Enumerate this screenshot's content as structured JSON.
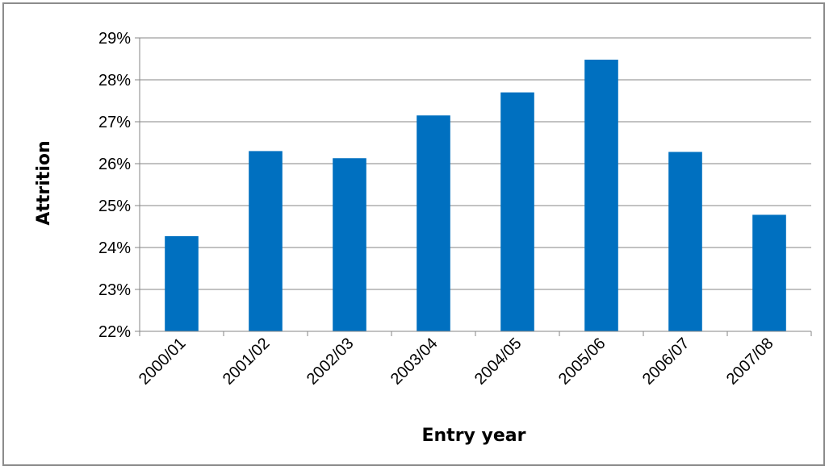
{
  "chart_data": {
    "type": "bar",
    "title": "",
    "xlabel": "Entry year",
    "ylabel": "Attrition",
    "categories": [
      "2000/01",
      "2001/02",
      "2002/03",
      "2003/04",
      "2004/05",
      "2005/06",
      "2006/07",
      "2007/08"
    ],
    "values": [
      24.27,
      26.3,
      26.13,
      27.15,
      27.7,
      28.48,
      26.28,
      24.78
    ],
    "y_unit": "%",
    "ylim": [
      22,
      29
    ],
    "yticks": [
      22,
      23,
      24,
      25,
      26,
      27,
      28,
      29
    ],
    "ytick_labels": [
      "22%",
      "23%",
      "24%",
      "25%",
      "26%",
      "27%",
      "28%",
      "29%"
    ],
    "grid": true,
    "legend": "none",
    "colors": {
      "bar": "#0070c0",
      "grid": "#868686",
      "axis": "#868686",
      "frame": "#8c8c8c"
    }
  }
}
